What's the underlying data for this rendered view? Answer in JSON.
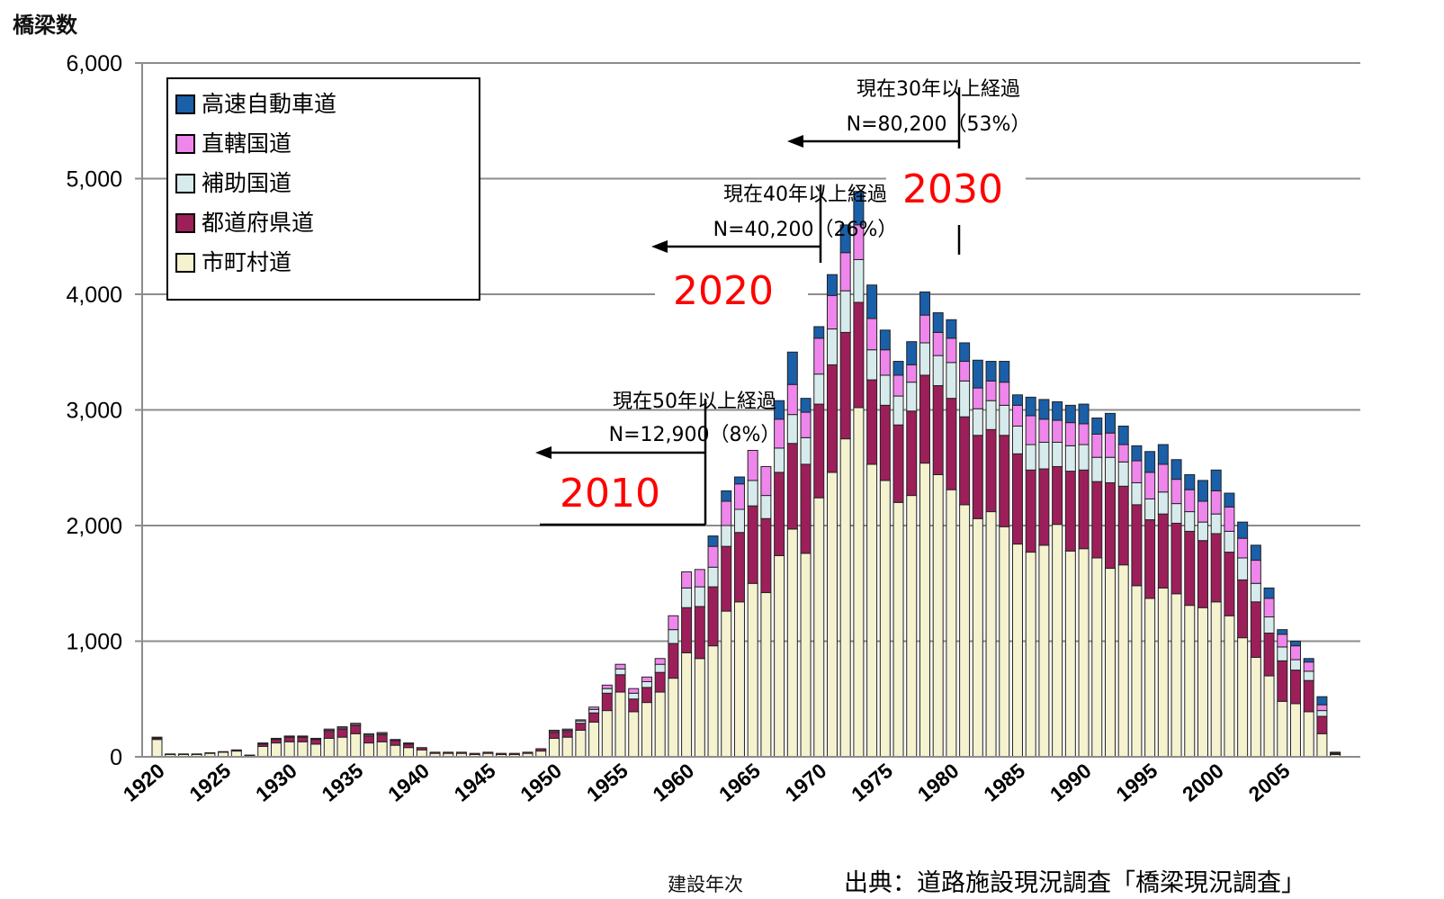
{
  "chart_data": {
    "type": "bar",
    "stacked": true,
    "ylabel": "橋梁数",
    "xlabel": "建設年次",
    "source": "出典：道路施設現況調査「橋梁現況調査」",
    "ylim": [
      0,
      6000
    ],
    "yticks": [
      "0",
      "1,000",
      "2,000",
      "3,000",
      "4,000",
      "5,000",
      "6,000"
    ],
    "ytick_values": [
      0,
      1000,
      2000,
      3000,
      4000,
      5000,
      6000
    ],
    "xticks": [
      "1920",
      "1925",
      "1930",
      "1935",
      "1940",
      "1945",
      "1950",
      "1955",
      "1960",
      "1965",
      "1970",
      "1975",
      "1980",
      "1985",
      "1990",
      "1995",
      "2000",
      "2005"
    ],
    "grid": true,
    "legend_position": "top-left",
    "categories": [
      1920,
      1921,
      1922,
      1923,
      1924,
      1925,
      1926,
      1927,
      1928,
      1929,
      1930,
      1931,
      1932,
      1933,
      1934,
      1935,
      1936,
      1937,
      1938,
      1939,
      1940,
      1941,
      1942,
      1943,
      1944,
      1945,
      1946,
      1947,
      1948,
      1949,
      1950,
      1951,
      1952,
      1953,
      1954,
      1955,
      1956,
      1957,
      1958,
      1959,
      1960,
      1961,
      1962,
      1963,
      1964,
      1965,
      1966,
      1967,
      1968,
      1969,
      1970,
      1971,
      1972,
      1973,
      1974,
      1975,
      1976,
      1977,
      1978,
      1979,
      1980,
      1981,
      1982,
      1983,
      1984,
      1985,
      1986,
      1987,
      1988,
      1989,
      1990,
      1991,
      1992,
      1993,
      1994,
      1995,
      1996,
      1997,
      1998,
      1999,
      2000,
      2001,
      2002,
      2003,
      2004,
      2005,
      2006,
      2007,
      2008,
      2009
    ],
    "series": [
      {
        "name": "市町村道",
        "color": "#f5f2cf",
        "values": [
          150,
          20,
          20,
          20,
          30,
          40,
          50,
          10,
          90,
          120,
          130,
          130,
          110,
          160,
          170,
          200,
          120,
          130,
          100,
          80,
          60,
          30,
          30,
          30,
          20,
          30,
          20,
          20,
          30,
          50,
          160,
          170,
          230,
          300,
          400,
          560,
          390,
          470,
          560,
          680,
          900,
          850,
          960,
          1260,
          1340,
          1500,
          1420,
          1740,
          1970,
          1760,
          2240,
          2460,
          2750,
          3020,
          2530,
          2390,
          2200,
          2260,
          2540,
          2440,
          2310,
          2180,
          2060,
          2120,
          1990,
          1840,
          1770,
          1830,
          2010,
          1780,
          1800,
          1720,
          1630,
          1660,
          1480,
          1370,
          1460,
          1410,
          1310,
          1290,
          1340,
          1220,
          1030,
          860,
          700,
          480,
          460,
          390,
          200,
          20
        ]
      },
      {
        "name": "都道府県道",
        "color": "#9c1f5a",
        "values": [
          10,
          5,
          5,
          5,
          5,
          5,
          10,
          5,
          20,
          30,
          40,
          40,
          40,
          60,
          70,
          70,
          60,
          60,
          40,
          30,
          20,
          10,
          10,
          10,
          10,
          10,
          10,
          10,
          10,
          20,
          50,
          50,
          60,
          80,
          150,
          150,
          110,
          130,
          170,
          300,
          390,
          450,
          510,
          560,
          600,
          670,
          640,
          720,
          740,
          770,
          810,
          930,
          920,
          910,
          730,
          650,
          670,
          730,
          760,
          770,
          790,
          760,
          720,
          710,
          790,
          780,
          710,
          660,
          500,
          690,
          680,
          660,
          740,
          680,
          700,
          680,
          640,
          610,
          640,
          580,
          590,
          550,
          500,
          480,
          370,
          350,
          290,
          270,
          150,
          10
        ]
      },
      {
        "name": "補助国道",
        "color": "#d7ebec",
        "values": [
          5,
          0,
          0,
          0,
          0,
          0,
          0,
          0,
          5,
          5,
          5,
          5,
          5,
          10,
          10,
          10,
          10,
          10,
          5,
          5,
          0,
          0,
          0,
          0,
          0,
          0,
          0,
          0,
          0,
          0,
          10,
          10,
          20,
          30,
          40,
          50,
          50,
          50,
          70,
          120,
          170,
          170,
          170,
          180,
          200,
          220,
          200,
          210,
          250,
          230,
          260,
          310,
          360,
          370,
          260,
          260,
          250,
          250,
          280,
          260,
          310,
          310,
          230,
          250,
          260,
          240,
          220,
          230,
          210,
          220,
          220,
          210,
          220,
          210,
          190,
          180,
          190,
          170,
          170,
          160,
          170,
          180,
          190,
          160,
          140,
          120,
          90,
          80,
          50,
          5
        ]
      },
      {
        "name": "直轄国道",
        "color": "#ef86ec",
        "values": [
          5,
          0,
          0,
          0,
          0,
          0,
          0,
          0,
          5,
          5,
          5,
          5,
          5,
          10,
          10,
          10,
          10,
          10,
          5,
          5,
          0,
          0,
          0,
          0,
          0,
          0,
          0,
          0,
          0,
          0,
          10,
          10,
          10,
          20,
          30,
          40,
          40,
          40,
          50,
          120,
          140,
          150,
          180,
          210,
          220,
          260,
          250,
          250,
          260,
          220,
          310,
          290,
          330,
          300,
          270,
          220,
          180,
          150,
          240,
          200,
          210,
          170,
          180,
          170,
          200,
          180,
          250,
          200,
          190,
          200,
          180,
          200,
          210,
          150,
          190,
          230,
          240,
          210,
          190,
          180,
          200,
          210,
          170,
          200,
          160,
          110,
          120,
          80,
          50,
          5
        ]
      },
      {
        "name": "高速自動車道",
        "color": "#1a5fa8",
        "values": [
          0,
          0,
          0,
          0,
          0,
          0,
          0,
          0,
          0,
          0,
          0,
          0,
          0,
          0,
          0,
          0,
          0,
          0,
          0,
          0,
          0,
          0,
          0,
          0,
          0,
          0,
          0,
          0,
          0,
          0,
          0,
          0,
          0,
          0,
          0,
          0,
          0,
          0,
          0,
          0,
          0,
          0,
          90,
          90,
          60,
          0,
          0,
          160,
          280,
          120,
          100,
          180,
          240,
          290,
          290,
          170,
          120,
          200,
          200,
          170,
          160,
          160,
          240,
          170,
          180,
          90,
          160,
          170,
          160,
          150,
          170,
          140,
          170,
          160,
          130,
          180,
          170,
          170,
          130,
          180,
          180,
          120,
          140,
          130,
          90,
          40,
          40,
          30,
          70,
          0
        ]
      }
    ],
    "annotations": [
      {
        "line1": "現在50年以上経過",
        "line2": "N=12,900（8%）",
        "cutoff_year": 1961,
        "marker_year": "2010"
      },
      {
        "line1": "現在40年以上経過",
        "line2": "N=40,200（26%）",
        "cutoff_year": 1969,
        "marker_year": "2020"
      },
      {
        "line1": "現在30年以上経過",
        "line2": "N=80,200（53%）",
        "cutoff_year": 1979,
        "marker_year": "2030"
      }
    ]
  }
}
